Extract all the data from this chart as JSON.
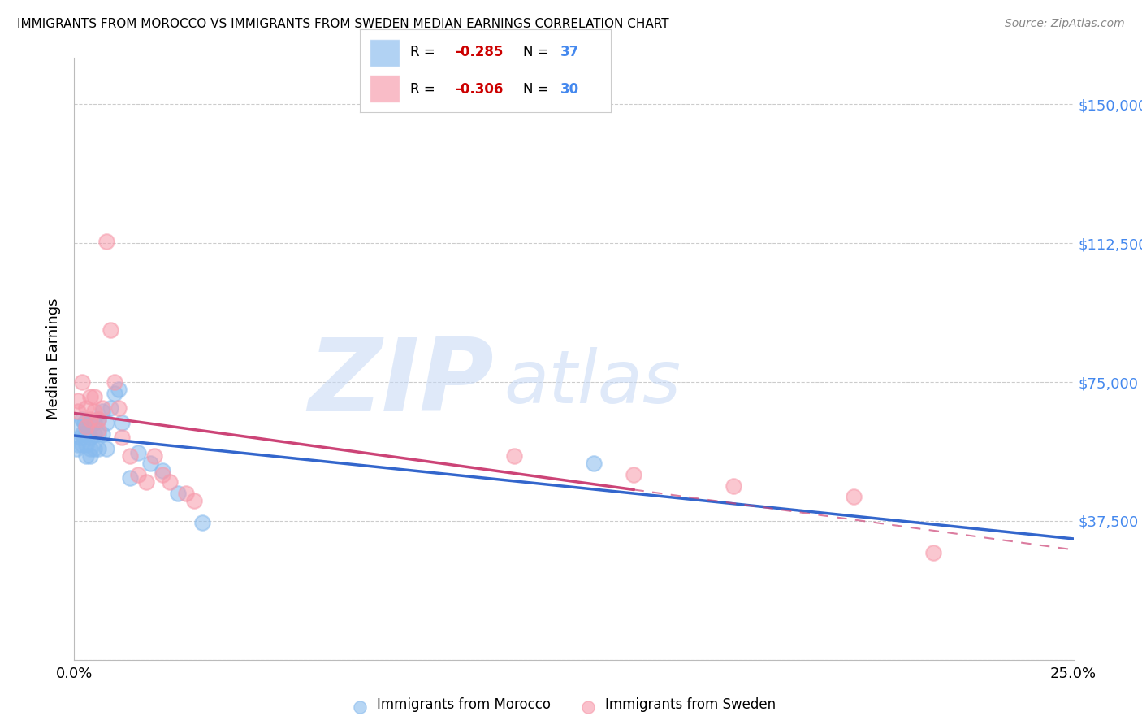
{
  "title": "IMMIGRANTS FROM MOROCCO VS IMMIGRANTS FROM SWEDEN MEDIAN EARNINGS CORRELATION CHART",
  "source": "Source: ZipAtlas.com",
  "ylabel": "Median Earnings",
  "xlim": [
    0,
    0.25
  ],
  "ylim": [
    0,
    162500
  ],
  "yticks": [
    0,
    37500,
    75000,
    112500,
    150000
  ],
  "ytick_labels_right": [
    "",
    "$37,500",
    "$75,000",
    "$112,500",
    "$150,000"
  ],
  "xticks": [
    0.0,
    0.05,
    0.1,
    0.15,
    0.2,
    0.25
  ],
  "xtick_labels": [
    "0.0%",
    "",
    "",
    "",
    "",
    "25.0%"
  ],
  "morocco_color": "#88bbee",
  "sweden_color": "#f799aa",
  "morocco_line_color": "#3366cc",
  "sweden_line_color": "#cc4477",
  "watermark_zip": "ZIP",
  "watermark_atlas": "atlas",
  "morocco_x": [
    0.0005,
    0.001,
    0.001,
    0.0015,
    0.002,
    0.002,
    0.002,
    0.0025,
    0.003,
    0.003,
    0.003,
    0.003,
    0.004,
    0.004,
    0.004,
    0.004,
    0.005,
    0.005,
    0.005,
    0.006,
    0.006,
    0.006,
    0.007,
    0.007,
    0.008,
    0.008,
    0.009,
    0.01,
    0.011,
    0.012,
    0.014,
    0.016,
    0.019,
    0.022,
    0.026,
    0.13,
    0.032
  ],
  "morocco_y": [
    57000,
    63000,
    58000,
    60000,
    65000,
    61000,
    58000,
    64000,
    61000,
    58000,
    55000,
    63000,
    64000,
    60000,
    57000,
    55000,
    64000,
    61000,
    57000,
    65000,
    61000,
    57000,
    67000,
    61000,
    64000,
    57000,
    68000,
    72000,
    73000,
    64000,
    49000,
    56000,
    53000,
    51000,
    45000,
    53000,
    37000
  ],
  "sweden_x": [
    0.001,
    0.001,
    0.002,
    0.003,
    0.003,
    0.004,
    0.004,
    0.005,
    0.005,
    0.006,
    0.006,
    0.007,
    0.008,
    0.009,
    0.01,
    0.011,
    0.012,
    0.014,
    0.016,
    0.018,
    0.02,
    0.022,
    0.024,
    0.028,
    0.03,
    0.11,
    0.14,
    0.165,
    0.195,
    0.215
  ],
  "sweden_y": [
    70000,
    67000,
    75000,
    68000,
    63000,
    71000,
    65000,
    71000,
    67000,
    65000,
    62000,
    68000,
    113000,
    89000,
    75000,
    68000,
    60000,
    55000,
    50000,
    48000,
    55000,
    50000,
    48000,
    45000,
    43000,
    55000,
    50000,
    47000,
    44000,
    29000
  ],
  "background_color": "#ffffff",
  "grid_color": "#cccccc"
}
